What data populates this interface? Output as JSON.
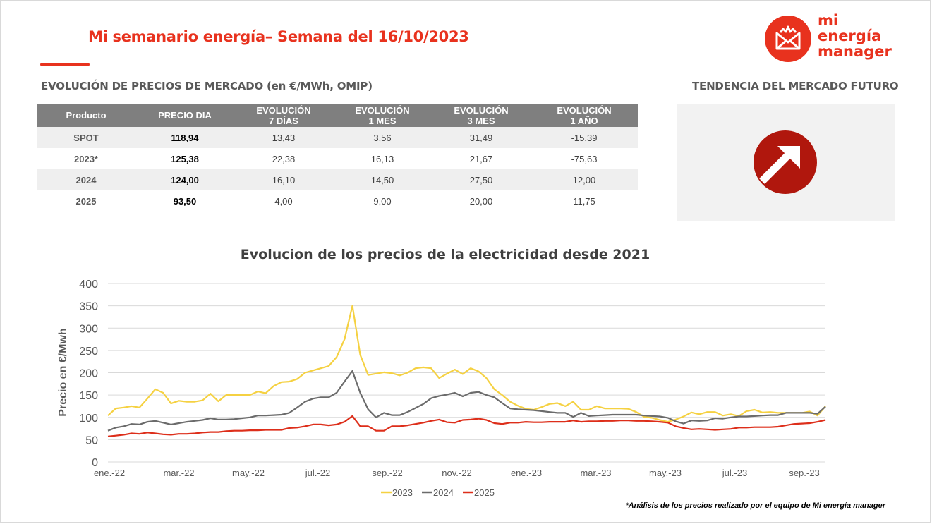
{
  "header": {
    "title": "Mi semanario energía– Semana del 16/10/2023",
    "logo_lines": [
      "mi",
      "energía",
      "manager"
    ]
  },
  "market": {
    "heading": "EVOLUCIÓN DE PRECIOS DE MERCADO (en €/MWh, OMIP)",
    "columns": [
      [
        "Producto"
      ],
      [
        "PRECIO DIA"
      ],
      [
        "EVOLUCIÓN",
        "7 DÍAS"
      ],
      [
        "EVOLUCIÓN",
        "1 MES"
      ],
      [
        "EVOLUCIÓN",
        "3 MES"
      ],
      [
        "EVOLUCIÓN",
        "1 AÑO"
      ]
    ],
    "rows": [
      [
        "SPOT",
        "118,94",
        "13,43",
        "3,56",
        "31,49",
        "-15,39"
      ],
      [
        "2023*",
        "125,38",
        "22,38",
        "16,13",
        "21,67",
        "-75,63"
      ],
      [
        "2024",
        "124,00",
        "16,10",
        "14,50",
        "27,50",
        "12,00"
      ],
      [
        "2025",
        "93,50",
        "4,00",
        "9,00",
        "20,00",
        "11,75"
      ]
    ]
  },
  "trend": {
    "heading": "TENDENCIA DEL MERCADO FUTURO",
    "direction": "up",
    "icon": "arrow-up-right-icon"
  },
  "footnote": "*Análisis de los precios realizado por el equipo de Mi energía manager",
  "colors": {
    "accent": "#e8321e",
    "s2023": "#f5d142",
    "s2024": "#6b6b6b",
    "s2025": "#dd2e1a",
    "grid": "#d9d9d9"
  },
  "chart_data": {
    "type": "line",
    "title": "Evolucion de los precios de la electricidad desde 2021",
    "ylabel": "Precio en €/Mwh",
    "xlabel": "",
    "ylim": [
      0,
      400
    ],
    "yticks": [
      0,
      50,
      100,
      150,
      200,
      250,
      300,
      350,
      400
    ],
    "xtick_labels": [
      "ene.-22",
      "mar.-22",
      "may.-22",
      "jul.-22",
      "sep.-22",
      "nov.-22",
      "ene.-23",
      "mar.-23",
      "may.-23",
      "jul.-23",
      "sep.-23"
    ],
    "x_period": "weekly, ene.-22 to oct.-23",
    "legend_position": "bottom",
    "grid": true,
    "series": [
      {
        "name": "2023",
        "values": [
          104,
          120,
          122,
          125,
          122,
          142,
          163,
          155,
          131,
          137,
          135,
          135,
          138,
          153,
          136,
          150,
          150,
          150,
          150,
          158,
          154,
          170,
          179,
          180,
          186,
          200,
          205,
          210,
          215,
          235,
          275,
          350,
          240,
          195,
          198,
          201,
          199,
          194,
          200,
          210,
          212,
          210,
          188,
          198,
          207,
          197,
          210,
          203,
          188,
          163,
          150,
          135,
          126,
          119,
          117,
          123,
          130,
          132,
          125,
          135,
          117,
          117,
          125,
          120,
          120,
          120,
          119,
          112,
          101,
          99,
          94,
          90,
          95,
          102,
          111,
          107,
          112,
          112,
          104,
          107,
          103,
          114,
          117,
          111,
          112,
          110,
          110,
          110,
          110,
          113,
          104,
          125
        ],
        "color": "#f5d142"
      },
      {
        "name": "2024",
        "values": [
          70,
          77,
          80,
          85,
          84,
          90,
          92,
          88,
          84,
          87,
          90,
          92,
          94,
          98,
          95,
          95,
          96,
          98,
          100,
          104,
          104,
          105,
          106,
          110,
          122,
          135,
          142,
          145,
          145,
          155,
          180,
          204,
          155,
          118,
          100,
          110,
          105,
          105,
          112,
          121,
          130,
          143,
          148,
          151,
          155,
          147,
          155,
          157,
          150,
          145,
          132,
          120,
          118,
          117,
          116,
          114,
          112,
          110,
          110,
          101,
          110,
          103,
          104,
          105,
          106,
          106,
          106,
          106,
          104,
          103,
          102,
          99,
          91,
          86,
          93,
          92,
          93,
          98,
          97,
          100,
          102,
          102,
          103,
          104,
          105,
          105,
          110,
          110,
          110,
          110,
          108,
          124
        ],
        "color": "#6b6b6b"
      },
      {
        "name": "2025",
        "values": [
          57,
          59,
          61,
          64,
          63,
          66,
          64,
          62,
          61,
          63,
          63,
          64,
          66,
          67,
          67,
          69,
          70,
          70,
          71,
          71,
          72,
          72,
          72,
          76,
          77,
          80,
          84,
          84,
          82,
          84,
          90,
          103,
          80,
          80,
          70,
          70,
          80,
          80,
          82,
          85,
          88,
          92,
          95,
          89,
          88,
          94,
          95,
          97,
          94,
          87,
          85,
          88,
          88,
          90,
          89,
          89,
          90,
          90,
          90,
          93,
          90,
          91,
          91,
          92,
          92,
          93,
          93,
          92,
          92,
          91,
          90,
          88,
          80,
          76,
          73,
          74,
          73,
          72,
          73,
          74,
          77,
          77,
          78,
          78,
          78,
          79,
          82,
          85,
          86,
          87,
          90,
          94
        ],
        "color": "#dd2e1a"
      }
    ]
  }
}
